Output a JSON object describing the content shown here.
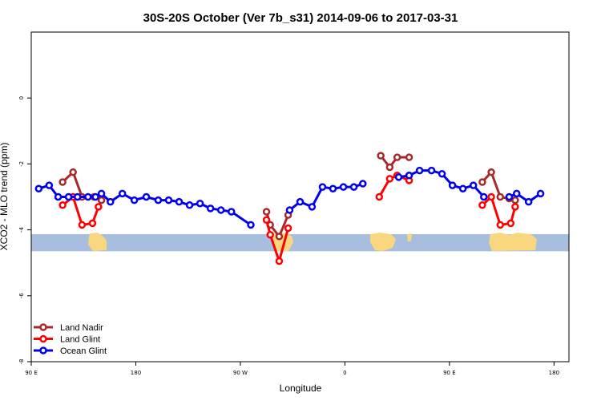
{
  "chart_data": {
    "type": "line",
    "title": "30S-20S October (Ver 7b_s31)   2014-09-06 to 2017-03-31",
    "xlabel": "Longitude",
    "ylabel": "XCO2 - MLO trend (ppm)",
    "xlim": [
      90,
      450
    ],
    "ylim": [
      -8,
      2
    ],
    "x_ticks": [
      {
        "value": 90,
        "label": "90 E"
      },
      {
        "value": 160,
        "label": "180"
      },
      {
        "value": 230,
        "label": "90 W"
      },
      {
        "value": 300,
        "label": "0"
      },
      {
        "value": 370,
        "label": "90 E"
      },
      {
        "value": 440,
        "label": "180"
      }
    ],
    "y_ticks": [
      {
        "value": 0,
        "label": "0"
      },
      {
        "value": -2,
        "label": "-2"
      },
      {
        "value": -4,
        "label": "-4"
      },
      {
        "value": -6,
        "label": "-6"
      },
      {
        "value": -8,
        "label": "-8"
      }
    ],
    "grid": false,
    "legend_position": "bottom-left",
    "land_band": {
      "y_range": [
        -4.65,
        -4.13
      ],
      "ocean_color": "#a7bedf",
      "land_color": "#f9d77e"
    },
    "series": [
      {
        "name": "Land Nadir",
        "color": "#a52a2a",
        "segments": [
          [
            [
              111,
              -2.55
            ],
            [
              118,
              -2.25
            ],
            [
              124,
              -3.0
            ],
            [
              132,
              -3.0
            ],
            [
              137,
              -3.1
            ]
          ],
          [
            [
              247.5,
              -3.45
            ],
            [
              250,
              -3.85
            ],
            [
              256,
              -4.2
            ],
            [
              262,
              -3.55
            ]
          ],
          [
            [
              324,
              -1.75
            ],
            [
              330,
              -2.1
            ],
            [
              335,
              -1.8
            ],
            [
              343,
              -1.8
            ]
          ],
          [
            [
              392,
              -2.55
            ],
            [
              398,
              -2.25
            ],
            [
              404,
              -3.0
            ],
            [
              410,
              -3.05
            ],
            [
              414,
              -3.1
            ]
          ]
        ]
      },
      {
        "name": "Land Glint",
        "color": "#ff0000",
        "segments": [
          [
            [
              111,
              -3.25
            ],
            [
              118,
              -3.0
            ],
            [
              124,
              -3.85
            ],
            [
              131,
              -3.8
            ],
            [
              135,
              -3.3
            ]
          ],
          [
            [
              247.5,
              -3.7
            ],
            [
              250,
              -4.15
            ],
            [
              256,
              -4.95
            ],
            [
              262,
              -3.95
            ]
          ],
          [
            [
              323,
              -3.0
            ],
            [
              330,
              -2.45
            ],
            [
              335,
              -2.35
            ],
            [
              343,
              -2.5
            ]
          ],
          [
            [
              392,
              -3.25
            ],
            [
              398,
              -3.0
            ],
            [
              404,
              -3.85
            ],
            [
              411,
              -3.8
            ],
            [
              414,
              -3.3
            ]
          ]
        ]
      },
      {
        "name": "Ocean Glint",
        "color": "#0000ee",
        "segments": [
          [
            [
              95,
              -2.75
            ],
            [
              102,
              -2.65
            ],
            [
              108,
              -3.0
            ],
            [
              115,
              -3.0
            ],
            [
              121,
              -3.0
            ],
            [
              128,
              -3.0
            ],
            [
              133,
              -3.0
            ],
            [
              137,
              -2.9
            ],
            [
              143,
              -3.15
            ],
            [
              151,
              -2.9
            ],
            [
              159,
              -3.1
            ],
            [
              167,
              -3.0
            ],
            [
              175,
              -3.1
            ],
            [
              182,
              -3.1
            ],
            [
              189,
              -3.15
            ],
            [
              196,
              -3.25
            ],
            [
              203,
              -3.2
            ],
            [
              210,
              -3.35
            ],
            [
              217,
              -3.4
            ],
            [
              224,
              -3.45
            ],
            [
              237,
              -3.85
            ]
          ],
          [
            [
              263,
              -3.4
            ],
            [
              270,
              -3.15
            ],
            [
              278,
              -3.3
            ],
            [
              285,
              -2.7
            ],
            [
              292,
              -2.75
            ],
            [
              299,
              -2.7
            ],
            [
              306,
              -2.7
            ],
            [
              312,
              -2.6
            ]
          ],
          [
            [
              336,
              -2.4
            ],
            [
              343,
              -2.35
            ],
            [
              350,
              -2.2
            ],
            [
              358,
              -2.2
            ],
            [
              365,
              -2.3
            ],
            [
              372,
              -2.65
            ],
            [
              379,
              -2.75
            ],
            [
              386,
              -2.65
            ],
            [
              393,
              -3.0
            ]
          ],
          [
            [
              410,
              -3.0
            ],
            [
              415,
              -2.9
            ],
            [
              423,
              -3.15
            ],
            [
              431,
              -2.9
            ]
          ]
        ]
      }
    ]
  }
}
